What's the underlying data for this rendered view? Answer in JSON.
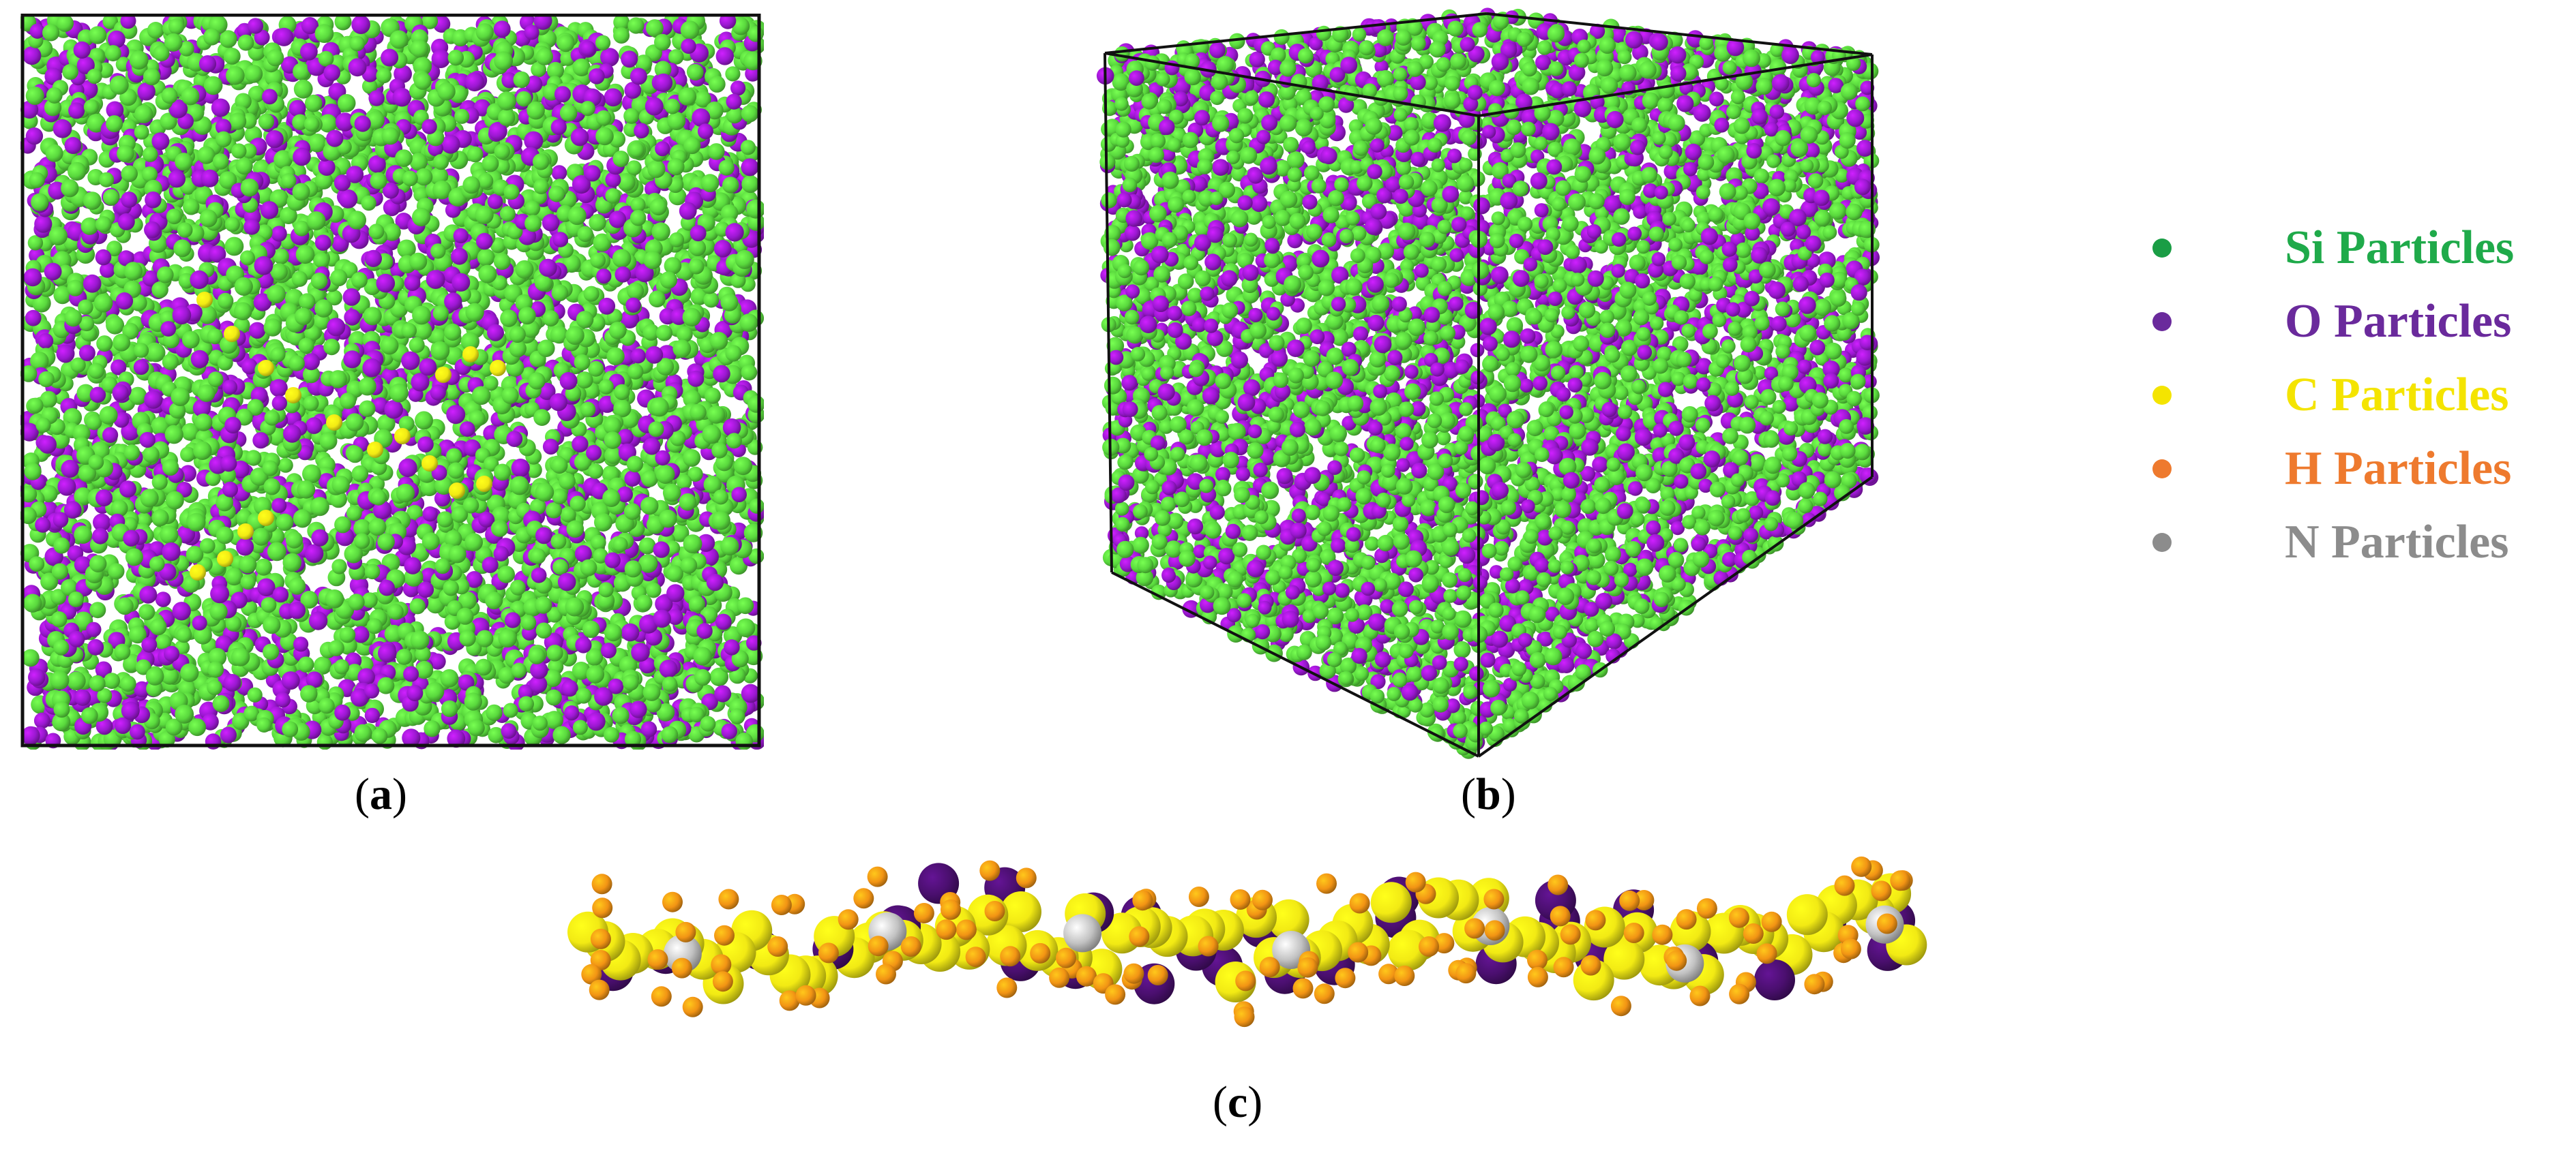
{
  "figure": {
    "panels": [
      {
        "id": "a",
        "label": "a",
        "description_view": "front"
      },
      {
        "id": "b",
        "label": "b",
        "description_view": "isometric"
      },
      {
        "id": "c",
        "label": "c",
        "description_view": "chain"
      }
    ]
  },
  "captions": {
    "a": {
      "open": "(",
      "letter": "a",
      "close": ")"
    },
    "b": {
      "open": "(",
      "letter": "b",
      "close": ")"
    },
    "c": {
      "open": "(",
      "letter": "c",
      "close": ")"
    }
  },
  "legend": {
    "items": [
      {
        "label": "Si Particles",
        "color": "#1faa4a",
        "dot": "#1a9d45"
      },
      {
        "label": "O Particles",
        "color": "#6a2a9c",
        "dot": "#6a2a9c"
      },
      {
        "label": "C Particles",
        "color": "#f4e400",
        "dot": "#f4e400"
      },
      {
        "label": "H Particles",
        "color": "#ee7a2e",
        "dot": "#ee7a2e"
      },
      {
        "label": "N Particles",
        "color": "#8c8c8c",
        "dot": "#8c8c8c"
      }
    ]
  },
  "colors": {
    "si": "#59d83d",
    "o": "#9a18d0",
    "c": "#f2ea14",
    "h": "#f29414",
    "n": "#c2c2c2",
    "o_chain": "#4a0f6e"
  }
}
